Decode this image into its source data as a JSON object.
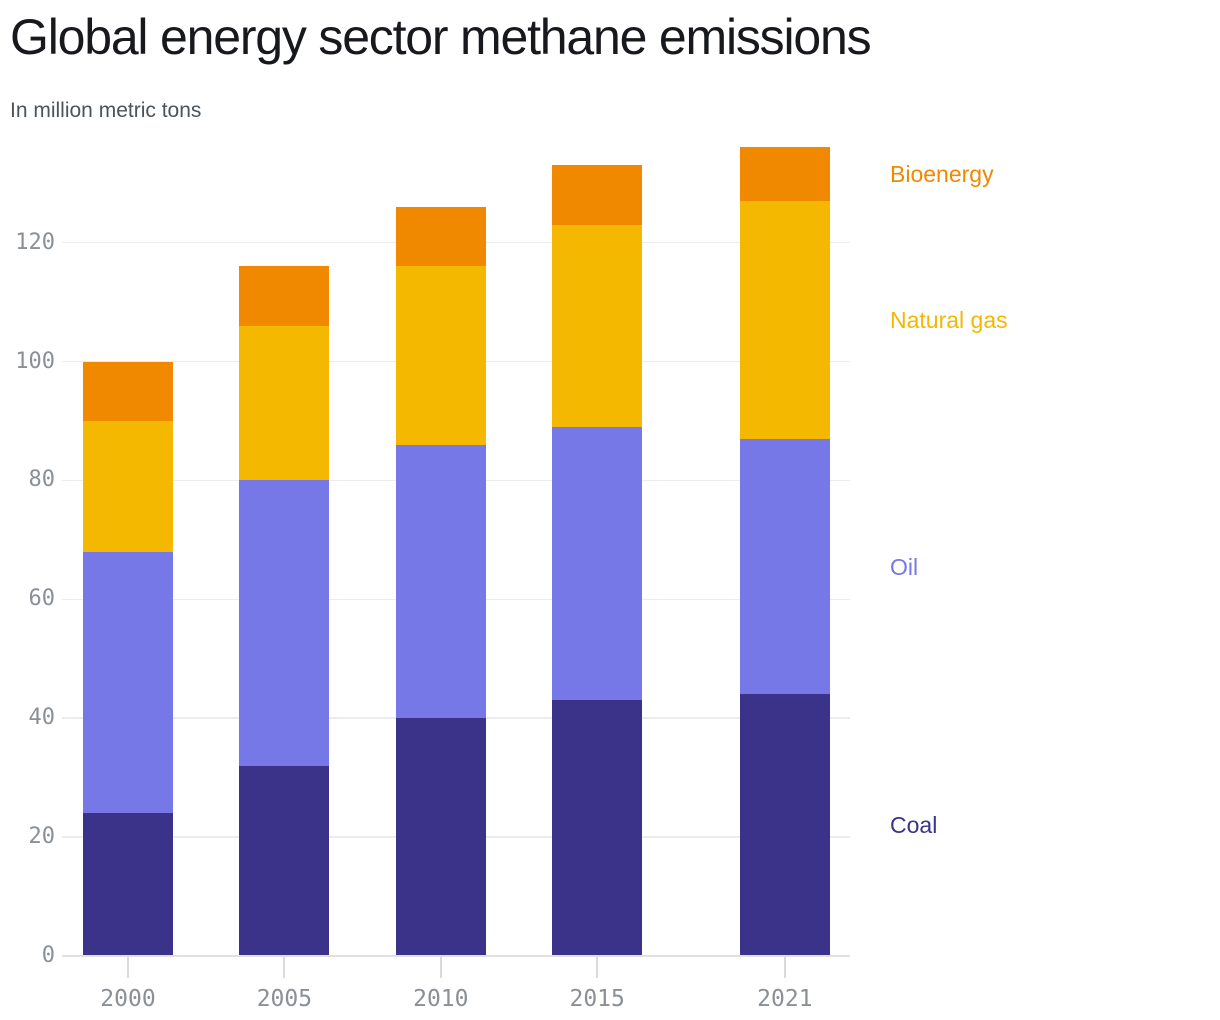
{
  "chart_data": {
    "type": "bar",
    "stacked": true,
    "title": "Global energy sector methane emissions",
    "subtitle": "In million metric tons",
    "categories": [
      "2000",
      "2005",
      "2010",
      "2015",
      "2021"
    ],
    "series": [
      {
        "name": "Coal",
        "color": "#3b3389",
        "values": [
          24,
          32,
          40,
          43,
          44
        ]
      },
      {
        "name": "Oil",
        "color": "#7678e8",
        "values": [
          44,
          48,
          46,
          46,
          43
        ]
      },
      {
        "name": "Natural gas",
        "color": "#f4b800",
        "values": [
          22,
          26,
          30,
          34,
          40
        ]
      },
      {
        "name": "Bioenergy",
        "color": "#f08800",
        "values": [
          10,
          10,
          10,
          10,
          9
        ]
      }
    ],
    "totals": [
      100,
      116,
      126,
      133,
      136
    ],
    "ylim": [
      0,
      140
    ],
    "yticks": [
      0,
      20,
      40,
      60,
      80,
      100,
      120
    ],
    "xlabel": "",
    "ylabel": "",
    "grid": true,
    "legend_position": "right",
    "text_colors": {
      "title": "#17191d",
      "subtitle": "#4c545a",
      "tick_labels": "#8a9095"
    }
  }
}
